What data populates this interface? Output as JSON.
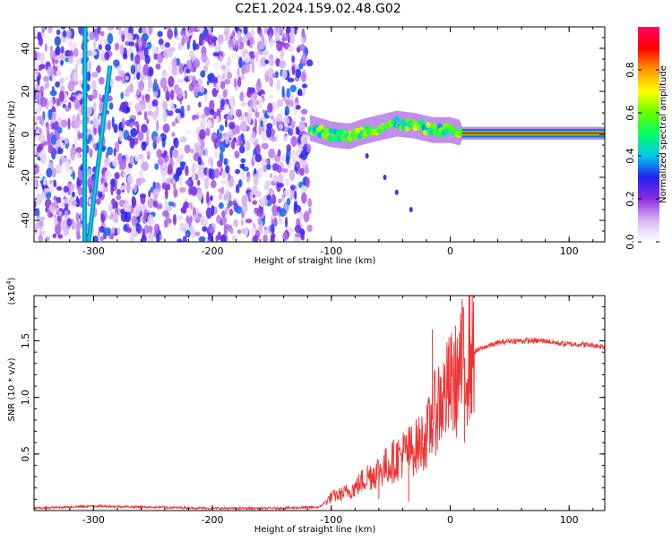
{
  "figure": {
    "title": "C2E1.2024.159.02.48.G02"
  },
  "chart_data": [
    {
      "type": "heatmap",
      "title": "C2E1.2024.159.02.48.G02",
      "xlabel": "Height of straight line (km)",
      "ylabel": "Frequency (Hz)",
      "xlim": [
        -350,
        130
      ],
      "ylim": [
        -50,
        50
      ],
      "x_ticks": [
        -300,
        -200,
        -100,
        0,
        100
      ],
      "y_ticks": [
        -40,
        -20,
        0,
        20,
        40
      ],
      "colorbar": {
        "label": "Normalized spectral amplitude",
        "range": [
          0,
          1
        ],
        "ticks": [
          "0.0",
          "0.2",
          "0.4",
          "0.6",
          "0.8"
        ],
        "colormap": [
          "#ffffff",
          "#d8b8f0",
          "#8a2be2",
          "#2222ee",
          "#00c8e8",
          "#00ff66",
          "#66ff00",
          "#ffff00",
          "#ff9900",
          "#ff0000",
          "#ff0066"
        ]
      },
      "regions": [
        {
          "name": "noise",
          "x_range": [
            -350,
            -118
          ],
          "freq_range": [
            -50,
            50
          ],
          "amplitude": [
            0.05,
            0.35
          ]
        },
        {
          "name": "doppler-track",
          "x_range": [
            -118,
            130
          ],
          "freq_range": [
            -3,
            6
          ],
          "amplitude": [
            0.3,
            0.95
          ]
        }
      ],
      "diagonal_streaks": [
        {
          "x_at_top": -307,
          "x_at_bottom": -307.5,
          "top_freq": 50,
          "bottom_freq": -50
        },
        {
          "x_at_top": -286,
          "x_at_bottom": -304,
          "top_freq": 32,
          "bottom_freq": -50
        }
      ],
      "tail": [
        {
          "x": -70,
          "freq": -10
        },
        {
          "x": -55,
          "freq": -20
        },
        {
          "x": -45,
          "freq": -27
        },
        {
          "x": -33,
          "freq": -35
        }
      ],
      "track_center": [
        {
          "x": -118,
          "freq": 3
        },
        {
          "x": -100,
          "freq": 0
        },
        {
          "x": -85,
          "freq": -1
        },
        {
          "x": -75,
          "freq": 1
        },
        {
          "x": -60,
          "freq": 3
        },
        {
          "x": -45,
          "freq": 5
        },
        {
          "x": -30,
          "freq": 4
        },
        {
          "x": -15,
          "freq": 2
        },
        {
          "x": 0,
          "freq": 2
        },
        {
          "x": 10,
          "freq": 0.5
        },
        {
          "x": 130,
          "freq": 0.5
        }
      ]
    },
    {
      "type": "line",
      "xlabel": "Height of straight line (km)",
      "ylabel": "SNR (10 * v/v)",
      "yscale_label": "(x10^4)",
      "xlim": [
        -350,
        130
      ],
      "ylim": [
        0,
        1.9
      ],
      "x_ticks": [
        -300,
        -200,
        -100,
        0,
        100
      ],
      "y_ticks": [
        0.5,
        1.0,
        1.5
      ],
      "color": "#ee3333",
      "series": [
        {
          "x": [
            -350,
            -300,
            -200,
            -150,
            -110,
            -100,
            -90,
            -80,
            -70,
            -60,
            -50,
            -40,
            -30,
            -20,
            -15,
            -10,
            -5,
            0,
            5,
            10,
            15,
            20,
            30,
            40,
            50,
            60,
            70,
            80,
            90,
            100,
            110,
            120,
            130
          ],
          "values": [
            0.02,
            0.04,
            0.02,
            0.02,
            0.03,
            0.12,
            0.15,
            0.2,
            0.3,
            0.35,
            0.42,
            0.5,
            0.55,
            0.65,
            0.8,
            0.95,
            1.0,
            1.1,
            1.15,
            1.25,
            1.35,
            1.4,
            1.45,
            1.48,
            1.5,
            1.5,
            1.5,
            1.5,
            1.48,
            1.47,
            1.47,
            1.46,
            1.45
          ],
          "spikes": [
            {
              "x": -15,
              "value": 1.6
            },
            {
              "x": 10,
              "value": 1.87
            },
            {
              "x": 12,
              "value": 0.6
            },
            {
              "x": -35,
              "value": 0.08
            },
            {
              "x": -60,
              "value": 0.1
            }
          ]
        }
      ]
    }
  ]
}
